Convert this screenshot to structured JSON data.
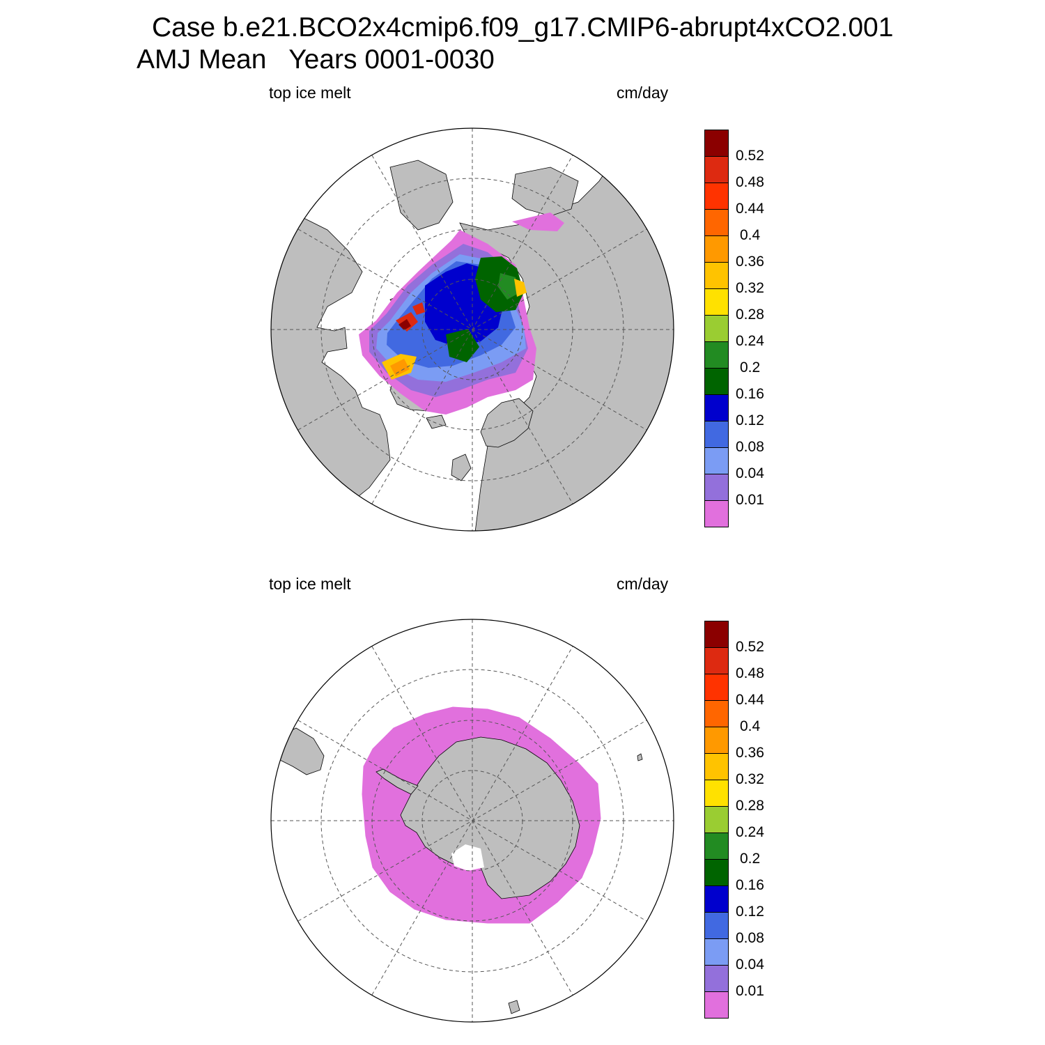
{
  "title": {
    "line1": "Case b.e21.BCO2x4cmip6.f09_g17.CMIP6-abrupt4xCO2.001",
    "line2": "AMJ Mean   Years 0001-0030"
  },
  "panels": [
    {
      "id": "nh",
      "hemisphere": "north",
      "variable_label": "top ice melt",
      "units_label": "cm/day"
    },
    {
      "id": "sh",
      "hemisphere": "south",
      "variable_label": "top ice melt",
      "units_label": "cm/day"
    }
  ],
  "colorbar": {
    "levels": [
      "0.01",
      "0.04",
      "0.08",
      "0.12",
      "0.16",
      "0.2",
      "0.24",
      "0.28",
      "0.32",
      "0.36",
      "0.4",
      "0.44",
      "0.48",
      "0.52"
    ],
    "colors": [
      "#e170dd",
      "#9370db",
      "#7b9cf4",
      "#4169e1",
      "#0000cd",
      "#006400",
      "#228b22",
      "#9acd32",
      "#ffe100",
      "#ffc300",
      "#ff9900",
      "#ff6600",
      "#ff3300",
      "#dd2a11",
      "#8b0000"
    ]
  },
  "map_colors": {
    "land": "#bebebe",
    "ocean": "#ffffff",
    "grid": "#555555"
  }
}
